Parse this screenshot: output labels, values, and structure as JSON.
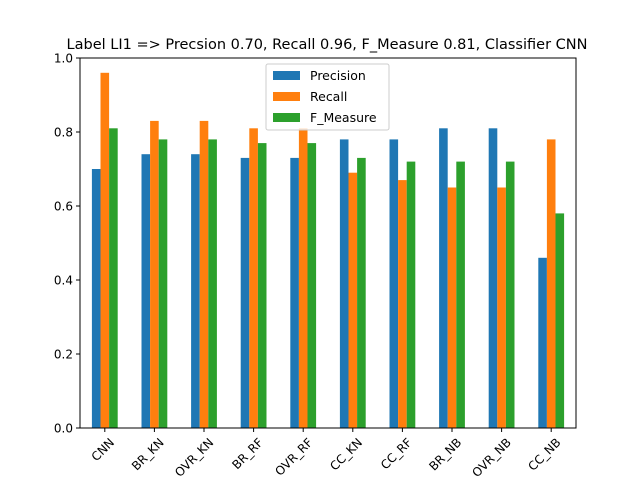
{
  "chart_data": {
    "type": "bar",
    "title": "Label LI1 => Precsion 0.70, Recall 0.96, F_Measure 0.81, Classifier CNN",
    "xlabel": "",
    "ylabel": "",
    "ylim": [
      0,
      1.0
    ],
    "yticks": [
      "0.0",
      "0.2",
      "0.4",
      "0.6",
      "0.8",
      "1.0"
    ],
    "grid": false,
    "legend_position": "top-center",
    "categories": [
      "CNN",
      "BR_KN",
      "OVR_KN",
      "BR_RF",
      "OVR_RF",
      "CC_KN",
      "CC_RF",
      "BR_NB",
      "OVR_NB",
      "CC_NB"
    ],
    "series": [
      {
        "name": "Precision",
        "color": "#1f77b4",
        "values": [
          0.7,
          0.74,
          0.74,
          0.73,
          0.73,
          0.78,
          0.78,
          0.81,
          0.81,
          0.46
        ]
      },
      {
        "name": "Recall",
        "color": "#ff7f0e",
        "values": [
          0.96,
          0.83,
          0.83,
          0.81,
          0.81,
          0.69,
          0.67,
          0.65,
          0.65,
          0.78
        ]
      },
      {
        "name": "F_Measure",
        "color": "#2ca02c",
        "values": [
          0.81,
          0.78,
          0.78,
          0.77,
          0.77,
          0.73,
          0.72,
          0.72,
          0.72,
          0.58
        ]
      }
    ]
  }
}
